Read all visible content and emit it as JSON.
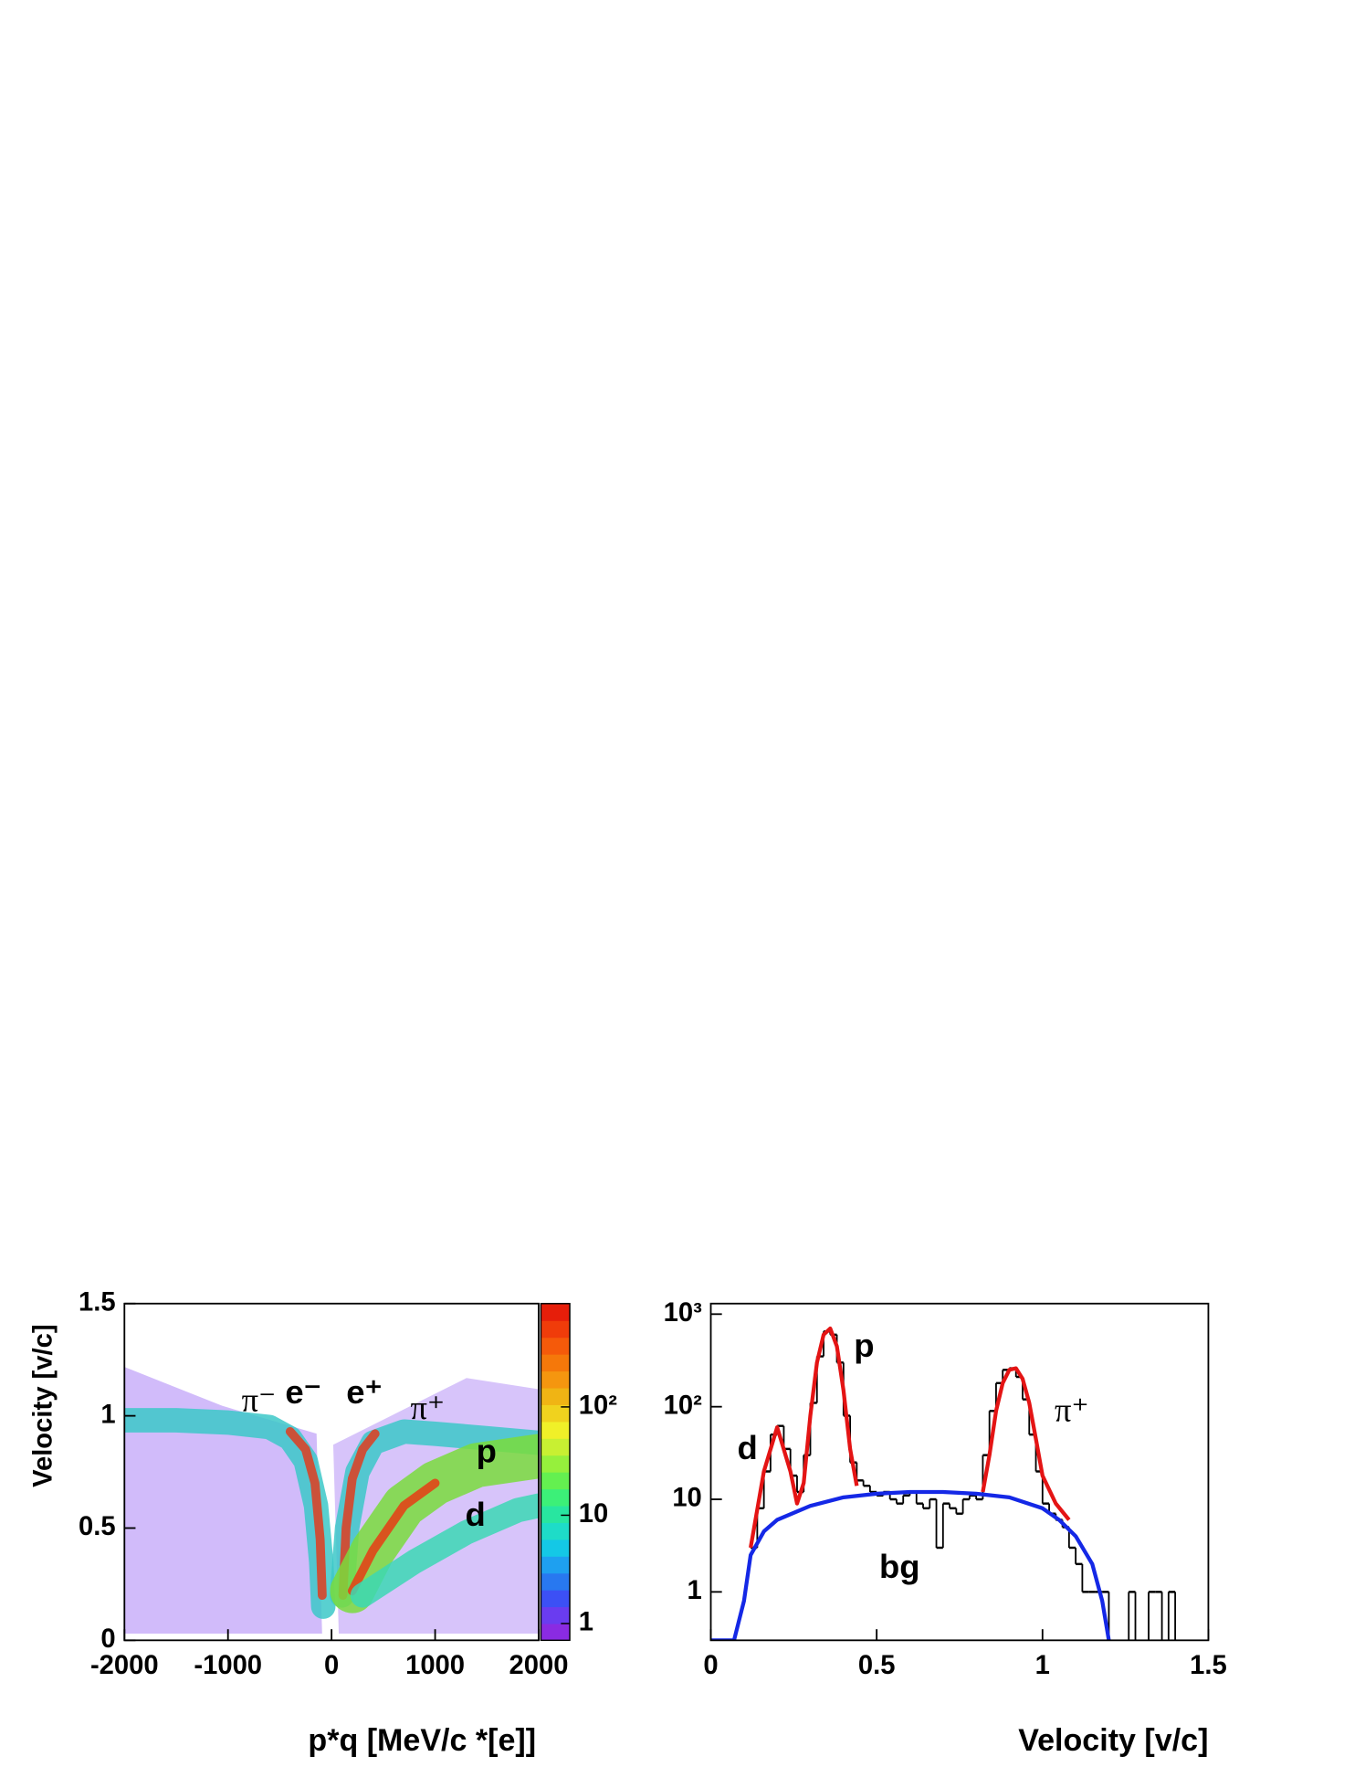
{
  "chart_data": [
    {
      "type": "heatmap",
      "xlabel": "p*q [MeV/c *[e]]",
      "ylabel": "Velocity [v/c]",
      "xlim": [
        -2000,
        2000
      ],
      "xticks": [
        -2000,
        -1000,
        0,
        1000,
        2000
      ],
      "ylim": [
        0,
        1.5
      ],
      "yticks": [
        0,
        0.5,
        1,
        1.5
      ],
      "zlim": [
        0.7,
        900
      ],
      "zlog": true,
      "zticks": [
        1,
        10,
        {
          "value": 100,
          "label": "10²"
        }
      ],
      "colorbar_colors": [
        "#8a2be2",
        "#6a3cf0",
        "#3c50f5",
        "#2878f0",
        "#1ea0f0",
        "#14c8e6",
        "#1edcc8",
        "#28e6a0",
        "#3cf078",
        "#64f050",
        "#96f03c",
        "#c8f032",
        "#f0f028",
        "#f0d21e",
        "#f0b414",
        "#f5960f",
        "#f5780a",
        "#f55a0a",
        "#f03c0a",
        "#e61e0a"
      ],
      "series": [
        {
          "color": "#3cc8c8",
          "x": [
            -2000,
            -1500,
            -1000,
            -600,
            -400,
            -250,
            -150,
            -100,
            -80
          ],
          "values": [
            0.98,
            0.98,
            0.97,
            0.95,
            0.9,
            0.8,
            0.6,
            0.35,
            0.15
          ]
        },
        {
          "color": "#e03c1e",
          "x": [
            -400,
            -250,
            -160,
            -110,
            -90
          ],
          "values": [
            0.93,
            0.85,
            0.7,
            0.45,
            0.2
          ]
        },
        {
          "color": "#3cc8c8",
          "x": [
            100,
            150,
            250,
            400,
            700,
            1000,
            1500,
            2000
          ],
          "values": [
            0.2,
            0.5,
            0.75,
            0.88,
            0.93,
            0.92,
            0.9,
            0.88
          ]
        },
        {
          "color": "#e03c1e",
          "x": [
            110,
            140,
            200,
            300,
            420
          ],
          "values": [
            0.2,
            0.5,
            0.72,
            0.85,
            0.92
          ]
        },
        {
          "color": "#7adc3c",
          "x": [
            200,
            400,
            700,
            1000,
            1400,
            2000
          ],
          "values": [
            0.22,
            0.4,
            0.6,
            0.7,
            0.78,
            0.82
          ]
        },
        {
          "color": "#e83c14",
          "x": [
            200,
            400,
            700,
            1000
          ],
          "values": [
            0.22,
            0.4,
            0.6,
            0.7
          ]
        },
        {
          "color": "#3cd8b4",
          "x": [
            300,
            800,
            1300,
            1800,
            2000
          ],
          "values": [
            0.2,
            0.35,
            0.48,
            0.58,
            0.6
          ]
        }
      ],
      "annotations": [
        "π⁻",
        "e⁻",
        "e⁺",
        "π⁺",
        "p",
        "d"
      ]
    },
    {
      "type": "histogram",
      "xlabel": "Velocity [v/c]",
      "xlim": [
        0,
        1.5
      ],
      "xticks": [
        0,
        0.5,
        1,
        1.5
      ],
      "ylim": [
        0.3,
        1300
      ],
      "ylog": true,
      "yticks": [
        1,
        10,
        {
          "value": 100,
          "label": "10²"
        },
        {
          "value": 1000,
          "label": "10³"
        }
      ],
      "bins": [
        0.12,
        0.14,
        0.16,
        0.18,
        0.2,
        0.22,
        0.24,
        0.26,
        0.28,
        0.3,
        0.32,
        0.34,
        0.36,
        0.38,
        0.4,
        0.42,
        0.44,
        0.46,
        0.48,
        0.5,
        0.52,
        0.54,
        0.56,
        0.58,
        0.6,
        0.62,
        0.64,
        0.66,
        0.68,
        0.7,
        0.72,
        0.74,
        0.76,
        0.78,
        0.8,
        0.82,
        0.84,
        0.86,
        0.88,
        0.9,
        0.92,
        0.94,
        0.96,
        0.98,
        1.0,
        1.02,
        1.04,
        1.06,
        1.08,
        1.1,
        1.12,
        1.14,
        1.16,
        1.18,
        1.2,
        1.22,
        1.24,
        1.26,
        1.28,
        1.3,
        1.32,
        1.34,
        1.36,
        1.38,
        1.4,
        1.42
      ],
      "values": [
        3,
        8,
        20,
        50,
        62,
        35,
        18,
        12,
        30,
        110,
        350,
        650,
        600,
        300,
        80,
        25,
        16,
        14,
        12,
        11,
        12,
        10,
        9,
        11,
        12,
        9,
        8,
        10,
        3,
        9,
        8,
        7,
        10,
        11,
        10,
        30,
        90,
        180,
        250,
        260,
        210,
        120,
        50,
        20,
        9,
        7,
        6,
        5,
        3,
        2,
        1,
        1,
        1,
        1,
        0,
        0,
        0,
        1,
        0,
        0,
        1,
        1,
        0,
        1,
        0
      ],
      "color": "#000000",
      "series": [
        {
          "color": "#e41414",
          "x": [
            0.12,
            0.16,
            0.2,
            0.24,
            0.26,
            0.28,
            0.3,
            0.32,
            0.34,
            0.36,
            0.38,
            0.4,
            0.42,
            0.44,
            null,
            0.82,
            0.84,
            0.86,
            0.88,
            0.9,
            0.92,
            0.94,
            0.96,
            0.98,
            1.0,
            1.04,
            1.08
          ],
          "values": [
            3,
            20,
            60,
            20,
            9,
            15,
            80,
            300,
            600,
            700,
            450,
            150,
            35,
            14,
            null,
            12,
            30,
            90,
            180,
            250,
            260,
            200,
            110,
            45,
            18,
            9,
            6
          ]
        },
        {
          "color": "#1428e6",
          "x": [
            0,
            0.07,
            0.1,
            0.12,
            0.16,
            0.2,
            0.3,
            0.4,
            0.5,
            0.6,
            0.7,
            0.8,
            0.9,
            1.0,
            1.05,
            1.1,
            1.15,
            1.18,
            1.2
          ],
          "values": [
            0.3,
            0.3,
            0.8,
            2.5,
            4.5,
            6,
            8.5,
            10.5,
            11.5,
            12,
            12,
            11.5,
            10.5,
            8,
            6,
            4,
            2,
            0.8,
            0.3
          ]
        }
      ],
      "annotations": [
        "p",
        "π⁺",
        "d",
        "bg"
      ]
    }
  ]
}
